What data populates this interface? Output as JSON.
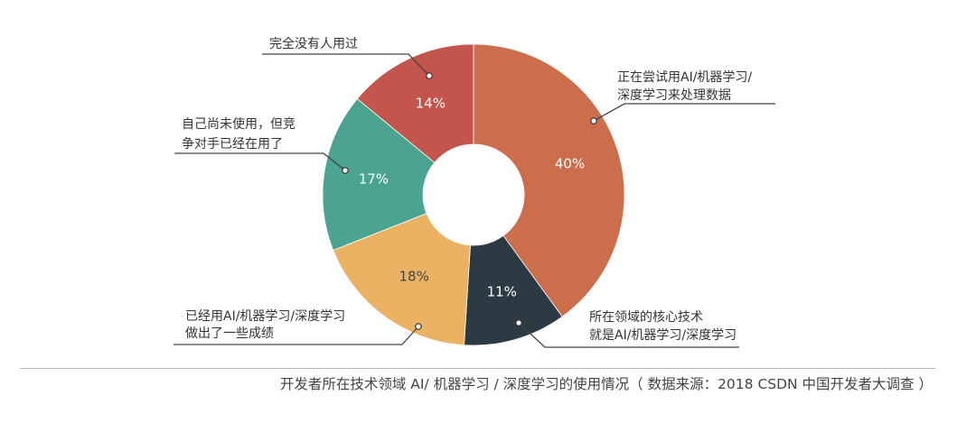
{
  "caption": "开发者所在技术领域 AI/ 机器学习 / 深度学习的使用情况（ 数据来源：2018 CSDN 中国开发者大调查 ）",
  "chart_data": {
    "type": "pie",
    "variant": "donut",
    "title": "",
    "slices": [
      {
        "label_lines": [
          "正在尝试用AI/机器学习/",
          "深度学习来处理数据"
        ],
        "value": 40,
        "value_label": "40%",
        "color": "#cc6d4b",
        "text_color": "#ffffff"
      },
      {
        "label_lines": [
          "所在领域的核心技术",
          "就是AI/机器学习/深度学习"
        ],
        "value": 11,
        "value_label": "11%",
        "color": "#2c3a44",
        "text_color": "#ffffff"
      },
      {
        "label_lines": [
          "已经用AI/机器学习/深度学习",
          "做出了一些成绩"
        ],
        "value": 18,
        "value_label": "18%",
        "color": "#eab262",
        "text_color": "#444444"
      },
      {
        "label_lines": [
          "自己尚未使用，但竞",
          "争对手已经在用了"
        ],
        "value": 17,
        "value_label": "17%",
        "color": "#4aa48f",
        "text_color": "#ffffff"
      },
      {
        "label_lines": [
          "完全没有人用过"
        ],
        "value": 14,
        "value_label": "14%",
        "color": "#c4554d",
        "text_color": "#ffffff"
      }
    ]
  }
}
